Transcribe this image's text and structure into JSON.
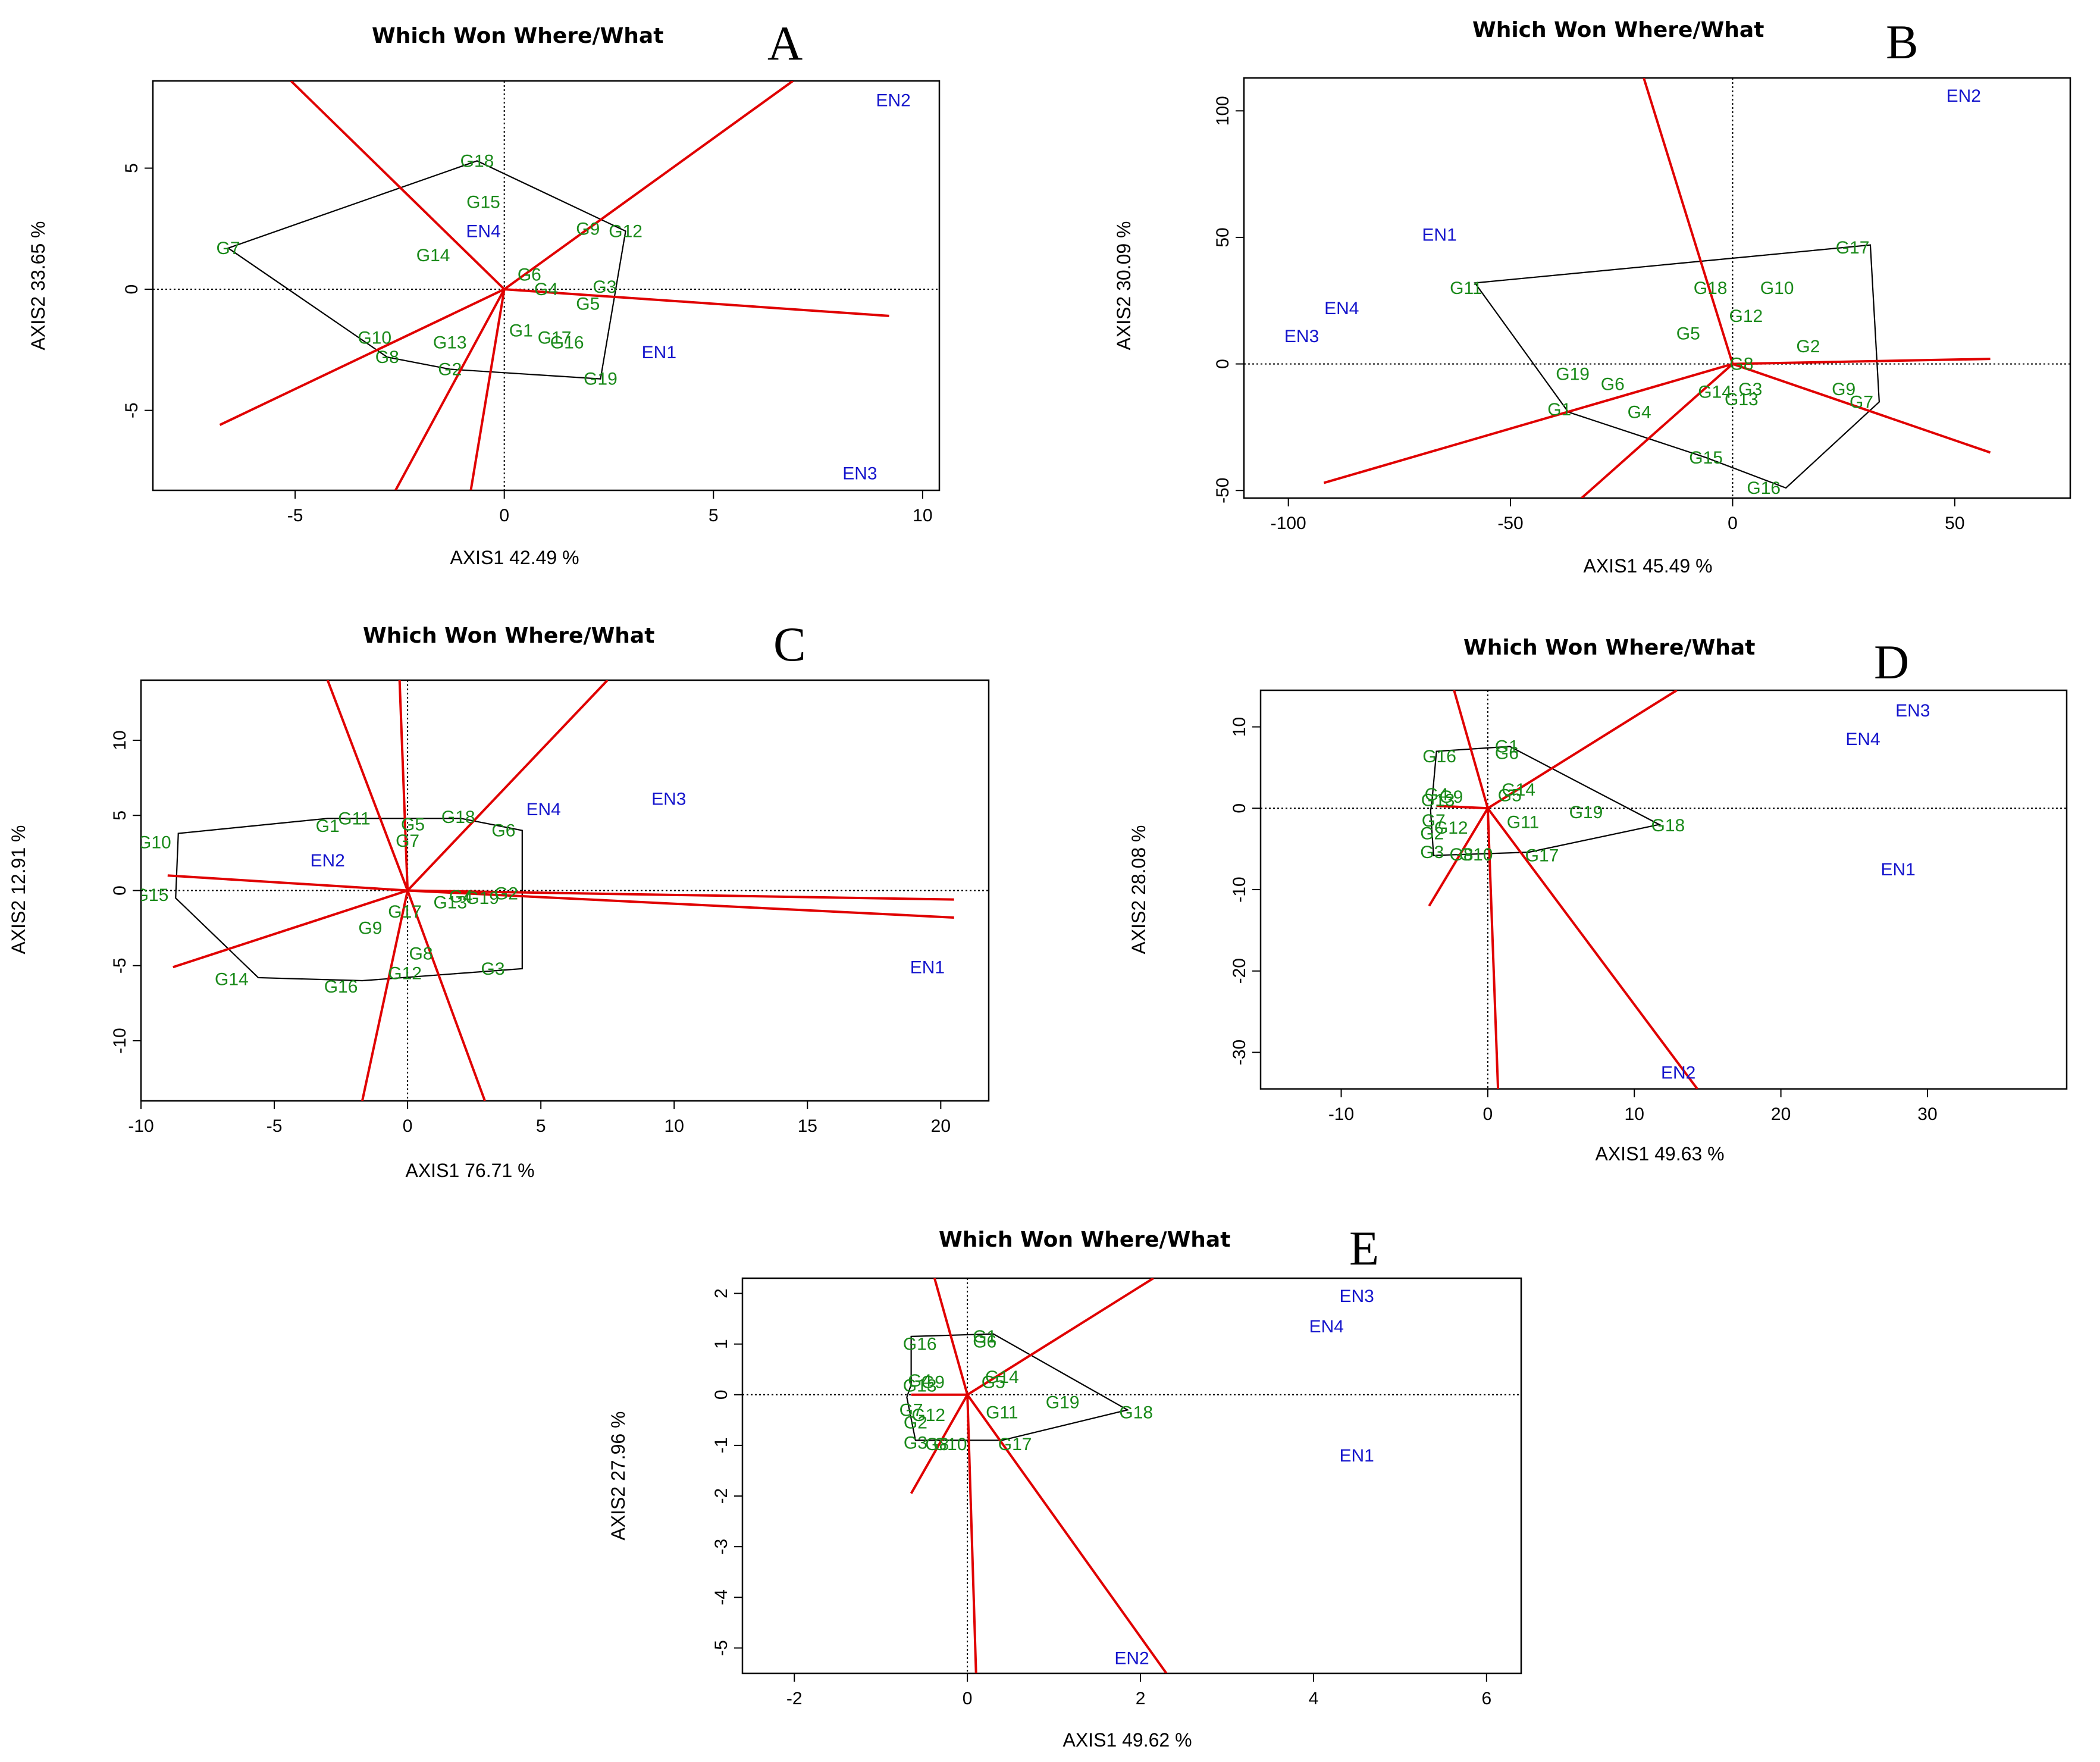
{
  "figure_title": "Which Won Where/What",
  "chart_data": [
    {
      "panel": "A",
      "type": "scatter",
      "plot": "biplot",
      "title": "Which Won Where/What",
      "xlabel": "AXIS1 42.49 %",
      "ylabel": "AXIS2 33.65 %",
      "xlim": [
        -8.4,
        10.4
      ],
      "ylim": [
        -8.3,
        8.6
      ],
      "xticks": [
        -5,
        0,
        5,
        10
      ],
      "yticks": [
        -5,
        0,
        5
      ],
      "genotypes": [
        {
          "name": "G18",
          "x": -0.65,
          "y": 5.3
        },
        {
          "name": "G15",
          "x": -0.5,
          "y": 3.6
        },
        {
          "name": "G7",
          "x": -6.6,
          "y": 1.7
        },
        {
          "name": "G14",
          "x": -1.7,
          "y": 1.4
        },
        {
          "name": "G9",
          "x": 2.0,
          "y": 2.5
        },
        {
          "name": "G12",
          "x": 2.9,
          "y": 2.4
        },
        {
          "name": "G6",
          "x": 0.6,
          "y": 0.6
        },
        {
          "name": "G4",
          "x": 1.0,
          "y": 0.0
        },
        {
          "name": "G3",
          "x": 2.4,
          "y": 0.1
        },
        {
          "name": "G5",
          "x": 2.0,
          "y": -0.6
        },
        {
          "name": "G1",
          "x": 0.4,
          "y": -1.7
        },
        {
          "name": "G17",
          "x": 1.2,
          "y": -2.0
        },
        {
          "name": "G16",
          "x": 1.5,
          "y": -2.2
        },
        {
          "name": "G10",
          "x": -3.1,
          "y": -2.0
        },
        {
          "name": "G13",
          "x": -1.3,
          "y": -2.2
        },
        {
          "name": "G8",
          "x": -2.8,
          "y": -2.8
        },
        {
          "name": "G2",
          "x": -1.3,
          "y": -3.3
        },
        {
          "name": "G19",
          "x": 2.3,
          "y": -3.7
        }
      ],
      "environments": [
        {
          "name": "EN2",
          "x": 9.3,
          "y": 7.8
        },
        {
          "name": "EN4",
          "x": -0.5,
          "y": 2.4
        },
        {
          "name": "EN1",
          "x": 3.7,
          "y": -2.6
        },
        {
          "name": "EN3",
          "x": 8.5,
          "y": -7.6
        }
      ],
      "hull": [
        [
          -0.65,
          5.3
        ],
        [
          2.9,
          2.4
        ],
        [
          2.3,
          -3.7
        ],
        [
          -1.3,
          -3.3
        ],
        [
          -2.8,
          -2.8
        ],
        [
          -6.6,
          1.7
        ]
      ],
      "sectors": [
        [
          -5.1,
          8.6
        ],
        [
          6.9,
          8.6
        ],
        [
          9.2,
          -1.1
        ],
        [
          -6.8,
          -5.6
        ],
        [
          -2.6,
          -8.3
        ],
        [
          -0.8,
          -8.3
        ]
      ]
    },
    {
      "panel": "B",
      "type": "scatter",
      "plot": "biplot",
      "title": "Which Won Where/What",
      "xlabel": "AXIS1 45.49 %",
      "ylabel": "AXIS2 30.09 %",
      "xlim": [
        -110,
        76
      ],
      "ylim": [
        -53,
        113
      ],
      "xticks": [
        -100,
        -50,
        0,
        50
      ],
      "yticks": [
        -50,
        0,
        50,
        100
      ],
      "genotypes": [
        {
          "name": "G17",
          "x": 27,
          "y": 46
        },
        {
          "name": "G11",
          "x": -60,
          "y": 30
        },
        {
          "name": "G18",
          "x": -5,
          "y": 30
        },
        {
          "name": "G10",
          "x": 10,
          "y": 30
        },
        {
          "name": "G12",
          "x": 3,
          "y": 19
        },
        {
          "name": "G5",
          "x": -10,
          "y": 12
        },
        {
          "name": "G2",
          "x": 17,
          "y": 7
        },
        {
          "name": "G8",
          "x": 2,
          "y": 0
        },
        {
          "name": "G19",
          "x": -36,
          "y": -4
        },
        {
          "name": "G6",
          "x": -27,
          "y": -8
        },
        {
          "name": "G14",
          "x": -4,
          "y": -11
        },
        {
          "name": "G3",
          "x": 4,
          "y": -10
        },
        {
          "name": "G13",
          "x": 2,
          "y": -14
        },
        {
          "name": "G9",
          "x": 25,
          "y": -10
        },
        {
          "name": "G7",
          "x": 29,
          "y": -15
        },
        {
          "name": "G1",
          "x": -39,
          "y": -18
        },
        {
          "name": "G4",
          "x": -21,
          "y": -19
        },
        {
          "name": "G15",
          "x": -6,
          "y": -37
        },
        {
          "name": "G16",
          "x": 7,
          "y": -49
        }
      ],
      "environments": [
        {
          "name": "EN2",
          "x": 52,
          "y": 106
        },
        {
          "name": "EN1",
          "x": -66,
          "y": 51
        },
        {
          "name": "EN4",
          "x": -88,
          "y": 22
        },
        {
          "name": "EN3",
          "x": -97,
          "y": 11
        }
      ],
      "hull": [
        [
          -58,
          32
        ],
        [
          31,
          47
        ],
        [
          33,
          -15
        ],
        [
          12,
          -49
        ],
        [
          -6,
          -37
        ],
        [
          -37,
          -19
        ]
      ],
      "sectors": [
        [
          -20,
          113
        ],
        [
          58,
          2
        ],
        [
          58,
          -35
        ],
        [
          -34,
          -53
        ],
        [
          -92,
          -47
        ]
      ]
    },
    {
      "panel": "C",
      "type": "scatter",
      "plot": "biplot",
      "title": "Which Won Where/What",
      "xlabel": "AXIS1 76.71 %",
      "ylabel": "AXIS2 12.91 %",
      "xlim": [
        -10,
        21.8
      ],
      "ylim": [
        -14,
        14
      ],
      "xticks": [
        -10,
        -5,
        0,
        5,
        10,
        15,
        20
      ],
      "yticks": [
        -10,
        -5,
        0,
        5,
        10
      ],
      "genotypes": [
        {
          "name": "G11",
          "x": -2.0,
          "y": 4.8
        },
        {
          "name": "G1",
          "x": -3.0,
          "y": 4.3
        },
        {
          "name": "G5",
          "x": 0.2,
          "y": 4.4
        },
        {
          "name": "G18",
          "x": 1.9,
          "y": 4.9
        },
        {
          "name": "G7",
          "x": 0.0,
          "y": 3.3
        },
        {
          "name": "G6",
          "x": 3.6,
          "y": 4.0
        },
        {
          "name": "G10",
          "x": -9.5,
          "y": 3.2
        },
        {
          "name": "G15",
          "x": -9.6,
          "y": -0.3
        },
        {
          "name": "G4",
          "x": 2.0,
          "y": -0.4
        },
        {
          "name": "G2",
          "x": 3.7,
          "y": -0.2
        },
        {
          "name": "G19",
          "x": 2.8,
          "y": -0.5
        },
        {
          "name": "G13",
          "x": 1.6,
          "y": -0.8
        },
        {
          "name": "G17",
          "x": -0.1,
          "y": -1.4
        },
        {
          "name": "G9",
          "x": -1.4,
          "y": -2.5
        },
        {
          "name": "G8",
          "x": 0.5,
          "y": -4.2
        },
        {
          "name": "G12",
          "x": -0.1,
          "y": -5.5
        },
        {
          "name": "G3",
          "x": 3.2,
          "y": -5.2
        },
        {
          "name": "G14",
          "x": -6.6,
          "y": -5.9
        },
        {
          "name": "G16",
          "x": -2.5,
          "y": -6.4
        }
      ],
      "environments": [
        {
          "name": "EN4",
          "x": 5.1,
          "y": 5.4
        },
        {
          "name": "EN3",
          "x": 9.8,
          "y": 6.1
        },
        {
          "name": "EN2",
          "x": -3.0,
          "y": 2.0
        },
        {
          "name": "EN1",
          "x": 19.5,
          "y": -5.1
        }
      ],
      "hull": [
        [
          -3,
          4.8
        ],
        [
          2,
          4.8
        ],
        [
          4.3,
          4
        ],
        [
          4.3,
          -0.3
        ],
        [
          4.3,
          -5.2
        ],
        [
          -1.7,
          -6
        ],
        [
          -5.6,
          -5.8
        ],
        [
          -8.7,
          -0.5
        ],
        [
          -8.6,
          3.8
        ]
      ],
      "sectors": [
        [
          -3,
          14
        ],
        [
          -0.3,
          14
        ],
        [
          7.5,
          14
        ],
        [
          20.5,
          -0.6
        ],
        [
          20.5,
          -1.8
        ],
        [
          -8.8,
          -5.1
        ],
        [
          -9,
          1
        ],
        [
          -1.7,
          -14
        ],
        [
          2.9,
          -14
        ]
      ]
    },
    {
      "panel": "D",
      "type": "scatter",
      "plot": "biplot",
      "title": "Which Won Where/What",
      "xlabel": "AXIS1 49.63 %",
      "ylabel": "AXIS2 28.08 %",
      "xlim": [
        -15.5,
        39.5
      ],
      "ylim": [
        -34.5,
        14.5
      ],
      "xticks": [
        -10,
        0,
        10,
        20,
        30
      ],
      "yticks": [
        -30,
        -20,
        -10,
        0,
        10
      ],
      "genotypes": [
        {
          "name": "G1",
          "x": 1.3,
          "y": 7.6
        },
        {
          "name": "G6",
          "x": 1.3,
          "y": 6.8
        },
        {
          "name": "G16",
          "x": -3.3,
          "y": 6.4
        },
        {
          "name": "G4",
          "x": -3.5,
          "y": 1.7
        },
        {
          "name": "G9",
          "x": -2.5,
          "y": 1.4
        },
        {
          "name": "G13",
          "x": -3.4,
          "y": 1.0
        },
        {
          "name": "G14",
          "x": 2.1,
          "y": 2.3
        },
        {
          "name": "G5",
          "x": 1.5,
          "y": 1.6
        },
        {
          "name": "G19",
          "x": 6.7,
          "y": -0.5
        },
        {
          "name": "G11",
          "x": 2.4,
          "y": -1.7
        },
        {
          "name": "G18",
          "x": 12.3,
          "y": -2.1
        },
        {
          "name": "G7",
          "x": -3.7,
          "y": -1.5
        },
        {
          "name": "G12",
          "x": -2.5,
          "y": -2.4
        },
        {
          "name": "G2",
          "x": -3.8,
          "y": -3.1
        },
        {
          "name": "G3",
          "x": -3.8,
          "y": -5.4
        },
        {
          "name": "G8",
          "x": -1.8,
          "y": -5.7
        },
        {
          "name": "G10",
          "x": -0.8,
          "y": -5.7
        },
        {
          "name": "G17",
          "x": 3.7,
          "y": -5.8
        }
      ],
      "environments": [
        {
          "name": "EN3",
          "x": 29,
          "y": 12
        },
        {
          "name": "EN4",
          "x": 25.6,
          "y": 8.5
        },
        {
          "name": "EN1",
          "x": 28,
          "y": -7.5
        },
        {
          "name": "EN2",
          "x": 13.0,
          "y": -32.5
        }
      ],
      "hull": [
        [
          -3.5,
          7
        ],
        [
          1.5,
          7.6
        ],
        [
          11.7,
          -2
        ],
        [
          2.8,
          -5.4
        ],
        [
          -3.7,
          -5.8
        ],
        [
          -3.9,
          -0.3
        ],
        [
          -3.8,
          1
        ]
      ],
      "sectors": [
        [
          -2.3,
          14.5
        ],
        [
          12.9,
          14.5
        ],
        [
          -4,
          -12
        ],
        [
          0.7,
          -34.5
        ],
        [
          14.3,
          -34.5
        ],
        [
          -3.5,
          0.3
        ]
      ]
    },
    {
      "panel": "E",
      "type": "scatter",
      "plot": "biplot",
      "title": "Which Won Where/What",
      "xlabel": "AXIS1 49.62 %",
      "ylabel": "AXIS2 27.96 %",
      "xlim": [
        -2.6,
        6.4
      ],
      "ylim": [
        -5.5,
        2.3
      ],
      "xticks": [
        -2,
        0,
        2,
        4,
        6
      ],
      "yticks": [
        -5,
        -4,
        -3,
        -2,
        -1,
        0,
        1,
        2
      ],
      "genotypes": [
        {
          "name": "G1",
          "x": 0.2,
          "y": 1.15
        },
        {
          "name": "G6",
          "x": 0.2,
          "y": 1.05
        },
        {
          "name": "G16",
          "x": -0.55,
          "y": 1.0
        },
        {
          "name": "G4",
          "x": -0.55,
          "y": 0.28
        },
        {
          "name": "G9",
          "x": -0.4,
          "y": 0.25
        },
        {
          "name": "G13",
          "x": -0.55,
          "y": 0.18
        },
        {
          "name": "G14",
          "x": 0.4,
          "y": 0.35
        },
        {
          "name": "G5",
          "x": 0.3,
          "y": 0.25
        },
        {
          "name": "G19",
          "x": 1.1,
          "y": -0.15
        },
        {
          "name": "G11",
          "x": 0.4,
          "y": -0.35
        },
        {
          "name": "G18",
          "x": 1.95,
          "y": -0.35
        },
        {
          "name": "G7",
          "x": -0.65,
          "y": -0.3
        },
        {
          "name": "G12",
          "x": -0.45,
          "y": -0.4
        },
        {
          "name": "G2",
          "x": -0.6,
          "y": -0.55
        },
        {
          "name": "G3",
          "x": -0.6,
          "y": -0.95
        },
        {
          "name": "G8",
          "x": -0.35,
          "y": -0.98
        },
        {
          "name": "G10",
          "x": -0.2,
          "y": -0.98
        },
        {
          "name": "G17",
          "x": 0.55,
          "y": -0.98
        }
      ],
      "environments": [
        {
          "name": "EN3",
          "x": 4.5,
          "y": 1.95
        },
        {
          "name": "EN4",
          "x": 4.15,
          "y": 1.35
        },
        {
          "name": "EN1",
          "x": 4.5,
          "y": -1.2
        },
        {
          "name": "EN2",
          "x": 1.9,
          "y": -5.2
        }
      ],
      "hull": [
        [
          -0.65,
          1.15
        ],
        [
          0.3,
          1.2
        ],
        [
          1.85,
          -0.3
        ],
        [
          0.4,
          -0.9
        ],
        [
          -0.6,
          -0.9
        ],
        [
          -0.7,
          -0.05
        ],
        [
          -0.65,
          0.2
        ]
      ],
      "sectors": [
        [
          -0.38,
          2.3
        ],
        [
          2.15,
          2.3
        ],
        [
          -0.65,
          -1.95
        ],
        [
          0.1,
          -5.5
        ],
        [
          2.3,
          -5.5
        ],
        [
          -0.65,
          0.0
        ]
      ]
    }
  ]
}
